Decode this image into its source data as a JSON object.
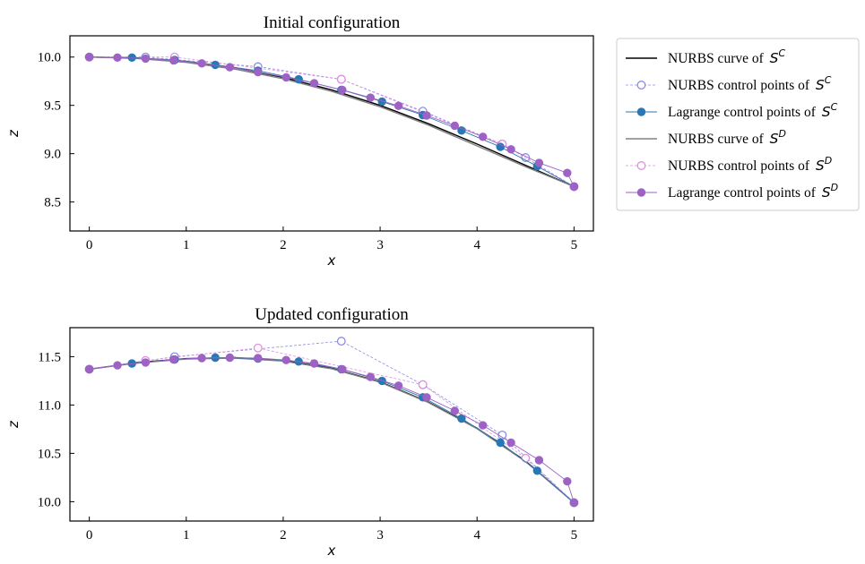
{
  "chart_data": [
    {
      "type": "line",
      "title": "Initial configuration",
      "xlabel": "x",
      "ylabel": "z",
      "xlim": [
        -0.2,
        5.2
      ],
      "ylim": [
        8.2,
        10.22
      ],
      "xticks": [
        0,
        1,
        2,
        3,
        4,
        5
      ],
      "xtick_labels": [
        "0",
        "1",
        "2",
        "3",
        "4",
        "5"
      ],
      "yticks": [
        8.5,
        9.0,
        9.5,
        10.0
      ],
      "ytick_labels": [
        "8.5",
        "9.0",
        "9.5",
        "10.0"
      ],
      "grid": false,
      "series": [
        {
          "name": "NURBS curve of S^C",
          "style": "curveC",
          "x": [
            0,
            0.5,
            1.0,
            1.5,
            2.0,
            2.5,
            3.0,
            3.5,
            4.0,
            4.5,
            5.0
          ],
          "y": [
            10.0,
            9.99,
            9.955,
            9.89,
            9.79,
            9.66,
            9.5,
            9.31,
            9.1,
            8.88,
            8.66
          ]
        },
        {
          "name": "NURBS control points of S^C",
          "style": "nurbsC",
          "x": [
            0,
            0.58,
            1.74,
            2.6,
            3.44,
            4.26,
            4.5,
            5.0
          ],
          "y": [
            10.0,
            10.0,
            9.9,
            9.77,
            9.44,
            9.1,
            8.96,
            8.66
          ]
        },
        {
          "name": "Lagrange control points of S^C",
          "style": "lagC",
          "x": [
            0,
            0.44,
            0.88,
            1.3,
            1.74,
            2.16,
            2.6,
            3.02,
            3.44,
            3.84,
            4.24,
            4.62,
            5.0
          ],
          "y": [
            10.0,
            9.995,
            9.97,
            9.92,
            9.86,
            9.77,
            9.66,
            9.54,
            9.4,
            9.24,
            9.07,
            8.87,
            8.66
          ]
        },
        {
          "name": "NURBS curve of S^D",
          "style": "curveD",
          "x": [
            0,
            0.5,
            1.0,
            1.5,
            2.0,
            2.5,
            3.0,
            3.5,
            4.0,
            4.5,
            5.0
          ],
          "y": [
            10.0,
            9.985,
            9.945,
            9.875,
            9.775,
            9.645,
            9.485,
            9.295,
            9.08,
            8.865,
            8.66
          ]
        },
        {
          "name": "NURBS control points of S^D",
          "style": "nurbsD",
          "x": [
            0,
            0.88,
            2.6,
            4.26,
            5.0
          ],
          "y": [
            10.0,
            10.0,
            9.77,
            9.1,
            8.66
          ]
        },
        {
          "name": "Lagrange control points of S^D",
          "style": "lagD",
          "x": [
            0,
            0.29,
            0.58,
            0.87,
            1.16,
            1.45,
            1.74,
            2.03,
            2.32,
            2.61,
            2.9,
            3.19,
            3.48,
            3.77,
            4.06,
            4.35,
            4.64,
            4.93,
            5.0
          ],
          "y": [
            10.0,
            9.995,
            9.985,
            9.965,
            9.935,
            9.895,
            9.845,
            9.79,
            9.73,
            9.66,
            9.58,
            9.495,
            9.395,
            9.29,
            9.175,
            9.045,
            8.905,
            8.8,
            8.66
          ]
        }
      ]
    },
    {
      "type": "line",
      "title": "Updated configuration",
      "xlabel": "x",
      "ylabel": "z",
      "xlim": [
        -0.2,
        5.2
      ],
      "ylim": [
        9.8,
        11.8
      ],
      "xticks": [
        0,
        1,
        2,
        3,
        4,
        5
      ],
      "xtick_labels": [
        "0",
        "1",
        "2",
        "3",
        "4",
        "5"
      ],
      "yticks": [
        10.0,
        10.5,
        11.0,
        11.5
      ],
      "ytick_labels": [
        "10.0",
        "10.5",
        "11.0",
        "11.5"
      ],
      "grid": false,
      "series": [
        {
          "name": "NURBS curve of S^C",
          "style": "curveC",
          "x": [
            0,
            0.5,
            1.0,
            1.5,
            2.0,
            2.5,
            3.0,
            3.5,
            4.0,
            4.5,
            5.0
          ],
          "y": [
            11.37,
            11.44,
            11.48,
            11.49,
            11.46,
            11.38,
            11.24,
            11.03,
            10.76,
            10.42,
            9.99
          ]
        },
        {
          "name": "NURBS control points of S^C",
          "style": "nurbsC",
          "x": [
            0,
            0.88,
            2.6,
            3.44,
            4.26,
            5.0
          ],
          "y": [
            11.37,
            11.5,
            11.66,
            11.21,
            10.69,
            9.99
          ]
        },
        {
          "name": "Lagrange control points of S^C",
          "style": "lagC",
          "x": [
            0,
            0.44,
            0.88,
            1.3,
            1.74,
            2.16,
            2.6,
            3.02,
            3.44,
            3.84,
            4.24,
            4.62,
            5.0
          ],
          "y": [
            11.37,
            11.43,
            11.47,
            11.49,
            11.48,
            11.45,
            11.37,
            11.25,
            11.08,
            10.86,
            10.61,
            10.32,
            9.99
          ]
        },
        {
          "name": "NURBS curve of S^D",
          "style": "curveD",
          "x": [
            0,
            0.5,
            1.0,
            1.5,
            2.0,
            2.5,
            3.0,
            3.5,
            4.0,
            4.5,
            5.0
          ],
          "y": [
            11.37,
            11.435,
            11.475,
            11.485,
            11.455,
            11.375,
            11.235,
            11.025,
            10.755,
            10.415,
            9.99
          ]
        },
        {
          "name": "NURBS control points of S^D",
          "style": "nurbsD",
          "x": [
            0,
            0.58,
            1.74,
            3.44,
            4.5,
            5.0
          ],
          "y": [
            11.37,
            11.46,
            11.59,
            11.21,
            10.45,
            9.99
          ]
        },
        {
          "name": "Lagrange control points of S^D",
          "style": "lagD",
          "x": [
            0,
            0.29,
            0.58,
            0.87,
            1.16,
            1.45,
            1.74,
            2.03,
            2.32,
            2.61,
            2.9,
            3.19,
            3.48,
            3.77,
            4.06,
            4.35,
            4.64,
            4.93,
            5.0
          ],
          "y": [
            11.37,
            11.41,
            11.44,
            11.47,
            11.485,
            11.49,
            11.485,
            11.465,
            11.43,
            11.37,
            11.29,
            11.2,
            11.08,
            10.94,
            10.79,
            10.61,
            10.43,
            10.21,
            9.99
          ]
        }
      ]
    }
  ],
  "legend": {
    "placement": "right",
    "entries": [
      {
        "text": "NURBS curve of ",
        "sym": "S",
        "sup": "C",
        "style": "curveC"
      },
      {
        "text": "NURBS control points of ",
        "sym": "S",
        "sup": "C",
        "style": "nurbsC"
      },
      {
        "text": "Lagrange control points of ",
        "sym": "S",
        "sup": "C",
        "style": "lagC"
      },
      {
        "text": "NURBS curve of ",
        "sym": "S",
        "sup": "D",
        "style": "curveD"
      },
      {
        "text": "NURBS control points of ",
        "sym": "S",
        "sup": "D",
        "style": "nurbsD"
      },
      {
        "text": "Lagrange control points of ",
        "sym": "S",
        "sup": "D",
        "style": "lagD"
      }
    ]
  },
  "colors": {
    "curveC": "#000000",
    "nurbsC": "#8c8ce8",
    "lagC": "#2878b5",
    "curveD": "#808080",
    "nurbsD": "#e08ee0",
    "lagD": "#9d62c4"
  }
}
